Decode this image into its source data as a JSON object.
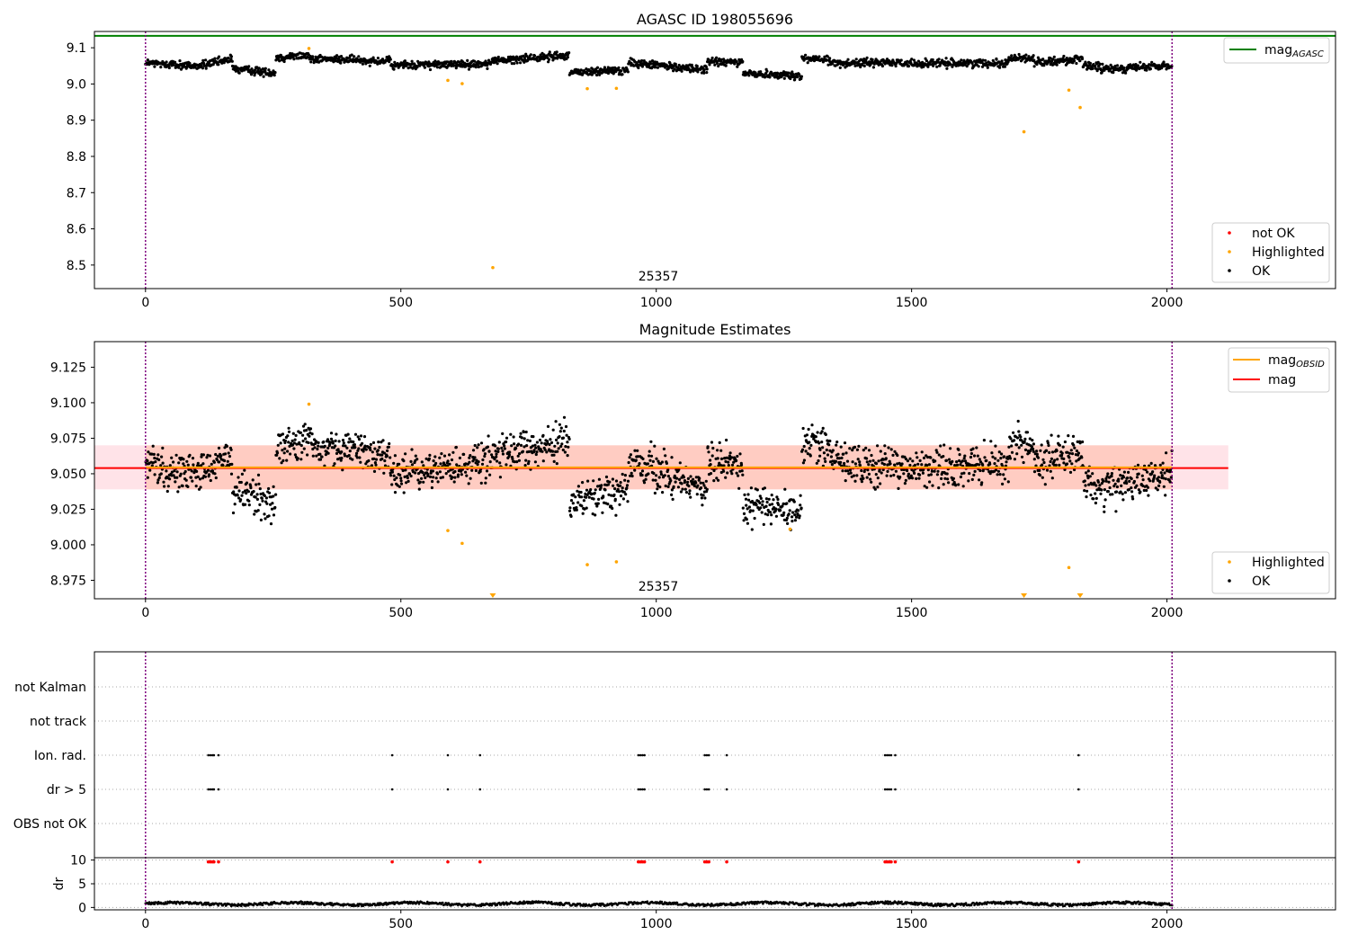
{
  "chart_data": [
    {
      "type": "scatter",
      "title": "AGASC ID 198055696",
      "xlim": [
        -100,
        2330
      ],
      "ylim": [
        8.435,
        9.145
      ],
      "xticks": [
        0,
        500,
        1000,
        1500,
        2000
      ],
      "yticks": [
        8.5,
        8.6,
        8.7,
        8.8,
        8.9,
        9.0,
        9.1
      ],
      "ytick_labels": [
        "8.5",
        "8.6",
        "8.7",
        "8.8",
        "8.9",
        "9.0",
        "9.1"
      ],
      "obsid_bounds": [
        0,
        2010
      ],
      "obsid_label": "25357",
      "obsid_label_x": 1005,
      "mag_agasc": 9.133,
      "ok_segments": [
        {
          "x0": 0,
          "x1": 100,
          "y0": 9.058,
          "y1": 9.05
        },
        {
          "x0": 100,
          "x1": 170,
          "y0": 9.05,
          "y1": 9.068
        },
        {
          "x0": 170,
          "x1": 255,
          "y0": 9.042,
          "y1": 9.03
        },
        {
          "x0": 255,
          "x1": 320,
          "y0": 9.072,
          "y1": 9.08
        },
        {
          "x0": 320,
          "x1": 480,
          "y0": 9.07,
          "y1": 9.063
        },
        {
          "x0": 480,
          "x1": 670,
          "y0": 9.052,
          "y1": 9.055
        },
        {
          "x0": 670,
          "x1": 830,
          "y0": 9.063,
          "y1": 9.08
        },
        {
          "x0": 830,
          "x1": 945,
          "y0": 9.032,
          "y1": 9.038
        },
        {
          "x0": 945,
          "x1": 1100,
          "y0": 9.058,
          "y1": 9.04
        },
        {
          "x0": 1100,
          "x1": 1170,
          "y0": 9.062,
          "y1": 9.058
        },
        {
          "x0": 1170,
          "x1": 1285,
          "y0": 9.03,
          "y1": 9.022
        },
        {
          "x0": 1285,
          "x1": 1340,
          "y0": 9.07,
          "y1": 9.066
        },
        {
          "x0": 1340,
          "x1": 1480,
          "y0": 9.058,
          "y1": 9.06
        },
        {
          "x0": 1480,
          "x1": 1690,
          "y0": 9.056,
          "y1": 9.058
        },
        {
          "x0": 1690,
          "x1": 1740,
          "y0": 9.072,
          "y1": 9.07
        },
        {
          "x0": 1740,
          "x1": 1835,
          "y0": 9.06,
          "y1": 9.068
        },
        {
          "x0": 1835,
          "x1": 1870,
          "y0": 9.05,
          "y1": 9.048
        },
        {
          "x0": 1870,
          "x1": 2010,
          "y0": 9.04,
          "y1": 9.05
        }
      ],
      "ok_jitter": 0.009,
      "highlighted_points": [
        {
          "x": 320,
          "y": 9.098
        },
        {
          "x": 592,
          "y": 9.01
        },
        {
          "x": 620,
          "y": 9.001
        },
        {
          "x": 680,
          "y": 8.493
        },
        {
          "x": 865,
          "y": 8.987
        },
        {
          "x": 922,
          "y": 8.988
        },
        {
          "x": 1720,
          "y": 8.868
        },
        {
          "x": 1808,
          "y": 8.983
        },
        {
          "x": 1830,
          "y": 8.935
        }
      ],
      "not_ok_points": [],
      "legend_lines": {
        "mag_base": "mag",
        "mag_sub": "AGASC",
        "color": "#008000"
      },
      "legend_points": [
        {
          "label": "not OK",
          "color": "#ff0000"
        },
        {
          "label": "Highlighted",
          "color": "#ffa500"
        },
        {
          "label": "OK",
          "color": "#000000"
        }
      ]
    },
    {
      "type": "scatter",
      "title": "Magnitude Estimates",
      "xlim": [
        -100,
        2330
      ],
      "ylim": [
        8.962,
        9.143
      ],
      "xticks": [
        0,
        500,
        1000,
        1500,
        2000
      ],
      "yticks": [
        8.975,
        9.0,
        9.025,
        9.05,
        9.075,
        9.1,
        9.125
      ],
      "ytick_labels": [
        "8.975",
        "9.000",
        "9.025",
        "9.050",
        "9.075",
        "9.100",
        "9.125"
      ],
      "obsid_bounds": [
        0,
        2010
      ],
      "obsid_label": "25357",
      "obsid_label_x": 1005,
      "band_pink": {
        "x0": -100,
        "x1": 2120,
        "y0": 9.039,
        "y1": 9.07
      },
      "band_orange": {
        "x0": 0,
        "x1": 2010,
        "y0": 9.039,
        "y1": 9.07
      },
      "mag_obsid": 9.0545,
      "mag": 9.054,
      "ok_segments": [
        {
          "x0": 0,
          "x1": 100,
          "y0": 9.058,
          "y1": 9.05
        },
        {
          "x0": 100,
          "x1": 170,
          "y0": 9.05,
          "y1": 9.062
        },
        {
          "x0": 170,
          "x1": 255,
          "y0": 9.038,
          "y1": 9.03
        },
        {
          "x0": 255,
          "x1": 330,
          "y0": 9.07,
          "y1": 9.075
        },
        {
          "x0": 330,
          "x1": 480,
          "y0": 9.068,
          "y1": 9.062
        },
        {
          "x0": 480,
          "x1": 670,
          "y0": 9.05,
          "y1": 9.058
        },
        {
          "x0": 670,
          "x1": 830,
          "y0": 9.06,
          "y1": 9.075
        },
        {
          "x0": 830,
          "x1": 945,
          "y0": 9.03,
          "y1": 9.038
        },
        {
          "x0": 945,
          "x1": 1100,
          "y0": 9.06,
          "y1": 9.038
        },
        {
          "x0": 1100,
          "x1": 1170,
          "y0": 9.058,
          "y1": 9.055
        },
        {
          "x0": 1170,
          "x1": 1285,
          "y0": 9.03,
          "y1": 9.022
        },
        {
          "x0": 1285,
          "x1": 1340,
          "y0": 9.068,
          "y1": 9.07
        },
        {
          "x0": 1340,
          "x1": 1480,
          "y0": 9.058,
          "y1": 9.055
        },
        {
          "x0": 1480,
          "x1": 1690,
          "y0": 9.052,
          "y1": 9.058
        },
        {
          "x0": 1690,
          "x1": 1740,
          "y0": 9.075,
          "y1": 9.07
        },
        {
          "x0": 1740,
          "x1": 1835,
          "y0": 9.058,
          "y1": 9.066
        },
        {
          "x0": 1835,
          "x1": 1870,
          "y0": 9.048,
          "y1": 9.04
        },
        {
          "x0": 1870,
          "x1": 2010,
          "y0": 9.04,
          "y1": 9.05
        }
      ],
      "ok_jitter": 0.011,
      "highlighted_points": [
        {
          "x": 320,
          "y": 9.099
        },
        {
          "x": 592,
          "y": 9.01
        },
        {
          "x": 620,
          "y": 9.001
        },
        {
          "x": 865,
          "y": 8.986
        },
        {
          "x": 922,
          "y": 8.988
        },
        {
          "x": 1262,
          "y": 9.011
        },
        {
          "x": 1808,
          "y": 8.984
        }
      ],
      "clipped_markers_x": [
        680,
        1720,
        1830
      ],
      "legend_lines": [
        {
          "base": "mag",
          "sub": "OBSID",
          "color": "#ffa500"
        },
        {
          "base": "mag",
          "sub": "",
          "color": "#ff0000"
        }
      ],
      "legend_points": [
        {
          "label": "Highlighted",
          "color": "#ffa500"
        },
        {
          "label": "OK",
          "color": "#000000"
        }
      ]
    },
    {
      "type": "scatter",
      "title": "",
      "xlim": [
        -100,
        2330
      ],
      "xticks": [
        0,
        500,
        1000,
        1500,
        2000
      ],
      "flag_rows": [
        "not Kalman",
        "not track",
        "Ion. rad.",
        "dr > 5",
        "OBS not OK"
      ],
      "flag_x": [
        123,
        127,
        131,
        134,
        143,
        483,
        592,
        655,
        965,
        969,
        973,
        977,
        1095,
        1099,
        1103,
        1138,
        1448,
        1452,
        1456,
        1460,
        1468,
        1827
      ],
      "flag_rows_with_points": [
        "Ion. rad.",
        "dr > 5"
      ],
      "dr_ylim": [
        -0.5,
        10.5
      ],
      "dr_yticks": [
        0,
        5,
        10
      ],
      "dr_ylabel": "dr",
      "dr_high_x": [
        123,
        127,
        131,
        134,
        143,
        483,
        592,
        655,
        965,
        969,
        973,
        977,
        1095,
        1099,
        1103,
        1138,
        1448,
        1452,
        1456,
        1460,
        1468,
        1827
      ],
      "dr_high_value": 10,
      "obsid_bounds": [
        0,
        2010
      ]
    }
  ]
}
